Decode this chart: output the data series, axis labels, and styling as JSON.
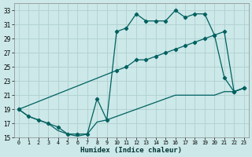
{
  "xlabel": "Humidex (Indice chaleur)",
  "bg_color": "#cce8e8",
  "grid_color": "#b0d0d0",
  "line_color": "#006060",
  "xlim": [
    -0.5,
    23.5
  ],
  "ylim": [
    15,
    34
  ],
  "xticks": [
    0,
    1,
    2,
    3,
    4,
    5,
    6,
    7,
    8,
    9,
    10,
    11,
    12,
    13,
    14,
    15,
    16,
    17,
    18,
    19,
    20,
    21,
    22,
    23
  ],
  "yticks": [
    15,
    17,
    19,
    21,
    23,
    25,
    27,
    29,
    31,
    33
  ],
  "line_top_x": [
    0,
    1,
    2,
    3,
    4,
    5,
    6,
    7,
    8,
    9,
    10,
    11,
    12,
    13,
    14,
    15,
    16,
    17,
    18,
    19,
    20,
    21,
    22,
    23
  ],
  "line_top_y": [
    19,
    18,
    17.5,
    17,
    16.5,
    15.5,
    15.5,
    15.5,
    20.5,
    17.5,
    30,
    30.5,
    32.5,
    31.5,
    31.5,
    31.5,
    33,
    32,
    32.5,
    32.5,
    29.5,
    23.5,
    21.5,
    22
  ],
  "line_mid_x": [
    0,
    10,
    11,
    12,
    13,
    14,
    15,
    16,
    17,
    18,
    19,
    20,
    21,
    22,
    23
  ],
  "line_mid_y": [
    19,
    24.5,
    25,
    26,
    26,
    26.5,
    27,
    27.5,
    28,
    28.5,
    29,
    29.5,
    30,
    21.5,
    22
  ],
  "line_bot_x": [
    0,
    1,
    2,
    3,
    4,
    5,
    6,
    7,
    8,
    9,
    10,
    11,
    12,
    13,
    14,
    15,
    16,
    17,
    18,
    19,
    20,
    21,
    22,
    23
  ],
  "line_bot_y": [
    19,
    18,
    17.5,
    17,
    16,
    15.5,
    15.2,
    15.5,
    17.2,
    17.5,
    18,
    18.5,
    19,
    19.5,
    20,
    20.5,
    21,
    21,
    21,
    21,
    21,
    21.5,
    21.5,
    22
  ]
}
